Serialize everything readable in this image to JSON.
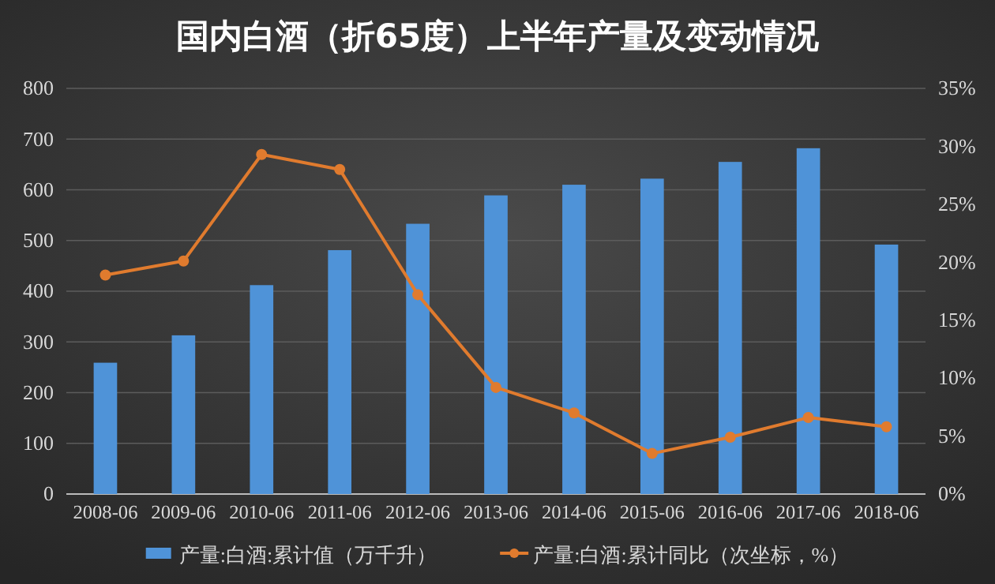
{
  "chart_data": {
    "type": "bar",
    "title": "国内白酒（折65度）上半年产量及变动情况",
    "categories": [
      "2008-06",
      "2009-06",
      "2010-06",
      "2011-06",
      "2012-06",
      "2013-06",
      "2014-06",
      "2015-06",
      "2016-06",
      "2017-06",
      "2018-06"
    ],
    "series": [
      {
        "name": "产量:白酒:累计值（万千升）",
        "color": "#4f93d8",
        "values": [
          259,
          313,
          412,
          481,
          533,
          589,
          610,
          622,
          655,
          682,
          492
        ]
      },
      {
        "name": "产量:白酒:累计同比（次坐标，%）",
        "type": "line",
        "axis": "y2",
        "color": "#e07b2e",
        "marker": "circle",
        "values": [
          18.9,
          20.1,
          29.3,
          28.0,
          17.2,
          9.2,
          7.0,
          3.5,
          4.9,
          6.6,
          5.8
        ]
      }
    ],
    "ylim": [
      0,
      800
    ],
    "yticks": [
      0,
      100,
      200,
      300,
      400,
      500,
      600,
      700,
      800
    ],
    "y2lim": [
      0,
      35
    ],
    "y2ticks": [
      {
        "value": 0,
        "label": "0%"
      },
      {
        "value": 5,
        "label": "5%"
      },
      {
        "value": 10,
        "label": "10%"
      },
      {
        "value": 15,
        "label": "15%"
      },
      {
        "value": 20,
        "label": "20%"
      },
      {
        "value": 25,
        "label": "25%"
      },
      {
        "value": 30,
        "label": "30%"
      },
      {
        "value": 35,
        "label": "35%"
      }
    ],
    "grid": "y",
    "legend": "bottom"
  }
}
